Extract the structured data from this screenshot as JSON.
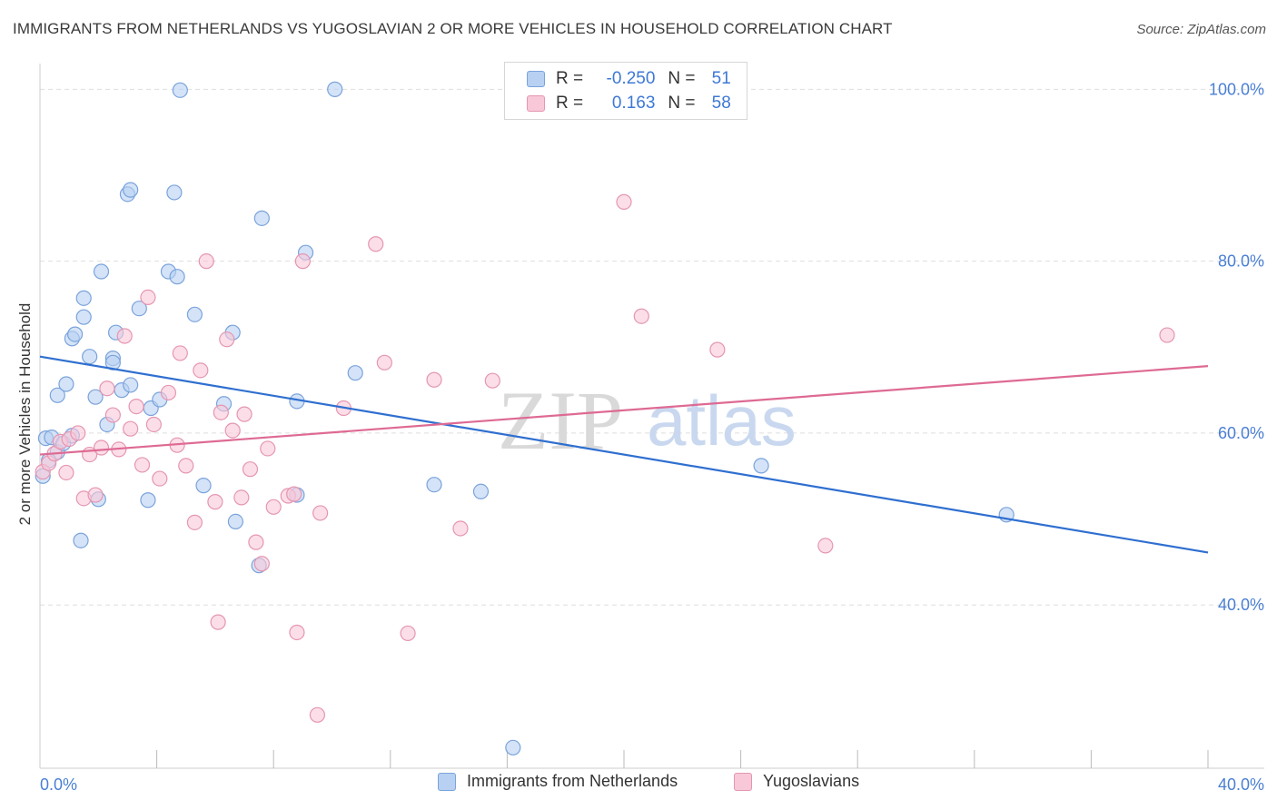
{
  "title": "IMMIGRANTS FROM NETHERLANDS VS YUGOSLAVIAN 2 OR MORE VEHICLES IN HOUSEHOLD CORRELATION CHART",
  "source": "Source: ZipAtlas.com",
  "watermark": {
    "zip": "ZIP",
    "atlas": "atlas"
  },
  "legend_top": {
    "rows": [
      {
        "r_label": "R =",
        "r_value": "-0.250",
        "n_label": "N =",
        "n_value": "51"
      },
      {
        "r_label": "R =",
        "r_value": "0.163",
        "n_label": "N =",
        "n_value": "58"
      }
    ]
  },
  "legend_bottom": {
    "items": [
      "Immigrants from Netherlands",
      "Yugoslavians"
    ]
  },
  "colors": {
    "blue_fill": "#b8d0f2",
    "blue_stroke": "#7aa3dc",
    "blue_line": "#2f6fd0",
    "pink_fill": "#f8c8d8",
    "pink_stroke": "#e596b1",
    "pink_line": "#de6a93",
    "tick_text": "#4a7fd4",
    "grid": "#dedede"
  },
  "chart_data": {
    "type": "scatter",
    "title": "IMMIGRANTS FROM NETHERLANDS VS YUGOSLAVIAN 2 OR MORE VEHICLES IN HOUSEHOLD CORRELATION CHART",
    "xlabel": "",
    "ylabel": "2 or more Vehicles in Household",
    "xlim": [
      0,
      40
    ],
    "ylim": [
      21,
      103
    ],
    "x_tick_labels": [
      {
        "value": 0,
        "label": "0.0%"
      },
      {
        "value": 40,
        "label": "40.0%"
      }
    ],
    "y_tick_labels": [
      {
        "value": 40,
        "label": "40.0%"
      },
      {
        "value": 60,
        "label": "60.0%"
      },
      {
        "value": 80,
        "label": "80.0%"
      },
      {
        "value": 100,
        "label": "100.0%"
      }
    ],
    "y_gridlines": [
      40,
      60,
      80,
      100
    ],
    "x_minor_ticks": [
      4,
      8,
      12,
      16,
      20,
      24,
      28,
      32,
      36,
      40
    ],
    "series": [
      {
        "name": "Immigrants from Netherlands",
        "color": "blue",
        "R": -0.25,
        "N": 51,
        "trend": {
          "x0": 0,
          "y0": 68.9,
          "x1": 40,
          "y1": 46.1
        },
        "points": [
          [
            0.1,
            55
          ],
          [
            0.2,
            59.4
          ],
          [
            0.4,
            59.5
          ],
          [
            0.6,
            57.8
          ],
          [
            0.6,
            64.4
          ],
          [
            0.8,
            58.8
          ],
          [
            0.9,
            65.7
          ],
          [
            1.1,
            59.7
          ],
          [
            1.1,
            71
          ],
          [
            1.2,
            71.5
          ],
          [
            1.4,
            47.5
          ],
          [
            1.5,
            75.7
          ],
          [
            1.5,
            73.5
          ],
          [
            1.7,
            68.9
          ],
          [
            1.9,
            64.2
          ],
          [
            2.0,
            52.3
          ],
          [
            2.1,
            78.8
          ],
          [
            2.3,
            61
          ],
          [
            2.5,
            68.7
          ],
          [
            2.5,
            68.2
          ],
          [
            2.6,
            71.7
          ],
          [
            2.8,
            65
          ],
          [
            3.0,
            87.8
          ],
          [
            3.1,
            88.3
          ],
          [
            3.1,
            65.6
          ],
          [
            3.4,
            74.5
          ],
          [
            3.7,
            52.2
          ],
          [
            3.8,
            62.9
          ],
          [
            4.1,
            63.9
          ],
          [
            4.4,
            78.8
          ],
          [
            4.6,
            88
          ],
          [
            4.7,
            78.2
          ],
          [
            4.8,
            99.9
          ],
          [
            5.3,
            73.8
          ],
          [
            5.6,
            53.9
          ],
          [
            6.3,
            63.4
          ],
          [
            6.6,
            71.7
          ],
          [
            6.7,
            49.7
          ],
          [
            7.5,
            44.6
          ],
          [
            7.6,
            85
          ],
          [
            8.8,
            63.7
          ],
          [
            8.8,
            52.8
          ],
          [
            9.1,
            81
          ],
          [
            10.1,
            100
          ],
          [
            10.8,
            67
          ],
          [
            13.5,
            54
          ],
          [
            15.1,
            53.2
          ],
          [
            16.2,
            23.4
          ],
          [
            24.7,
            56.2
          ],
          [
            33.1,
            50.5
          ],
          [
            0.3,
            56.8
          ]
        ]
      },
      {
        "name": "Yugoslavians",
        "color": "pink",
        "R": 0.163,
        "N": 58,
        "trend": {
          "x0": 0,
          "y0": 57.5,
          "x1": 40,
          "y1": 67.8
        },
        "points": [
          [
            0.1,
            55.5
          ],
          [
            0.3,
            56.5
          ],
          [
            0.5,
            57.6
          ],
          [
            0.7,
            59
          ],
          [
            0.9,
            55.4
          ],
          [
            1.0,
            59.3
          ],
          [
            1.3,
            60
          ],
          [
            1.5,
            52.4
          ],
          [
            1.7,
            57.5
          ],
          [
            1.9,
            52.8
          ],
          [
            2.1,
            58.3
          ],
          [
            2.3,
            65.2
          ],
          [
            2.5,
            62.1
          ],
          [
            2.7,
            58.1
          ],
          [
            2.9,
            71.3
          ],
          [
            3.1,
            60.5
          ],
          [
            3.3,
            63.1
          ],
          [
            3.5,
            56.3
          ],
          [
            3.7,
            75.8
          ],
          [
            3.9,
            61
          ],
          [
            4.1,
            54.7
          ],
          [
            4.4,
            64.7
          ],
          [
            4.7,
            58.6
          ],
          [
            4.8,
            69.3
          ],
          [
            5.0,
            56.2
          ],
          [
            5.3,
            49.6
          ],
          [
            5.5,
            67.3
          ],
          [
            5.7,
            80
          ],
          [
            6.0,
            52
          ],
          [
            6.1,
            38
          ],
          [
            6.2,
            62.4
          ],
          [
            6.4,
            70.9
          ],
          [
            6.6,
            60.3
          ],
          [
            6.9,
            52.5
          ],
          [
            7.0,
            62.2
          ],
          [
            7.2,
            55.8
          ],
          [
            7.4,
            47.3
          ],
          [
            7.6,
            44.8
          ],
          [
            7.8,
            58.2
          ],
          [
            8.0,
            51.4
          ],
          [
            8.5,
            52.7
          ],
          [
            8.7,
            52.9
          ],
          [
            8.8,
            36.8
          ],
          [
            9.0,
            80
          ],
          [
            9.5,
            27.2
          ],
          [
            9.6,
            50.7
          ],
          [
            10.4,
            62.9
          ],
          [
            11.5,
            82
          ],
          [
            11.8,
            68.2
          ],
          [
            12.6,
            36.7
          ],
          [
            13.5,
            66.2
          ],
          [
            14.4,
            48.9
          ],
          [
            15.5,
            66.1
          ],
          [
            20.0,
            86.9
          ],
          [
            20.6,
            73.6
          ],
          [
            23.2,
            69.7
          ],
          [
            26.9,
            46.9
          ],
          [
            38.6,
            71.4
          ]
        ]
      }
    ]
  }
}
